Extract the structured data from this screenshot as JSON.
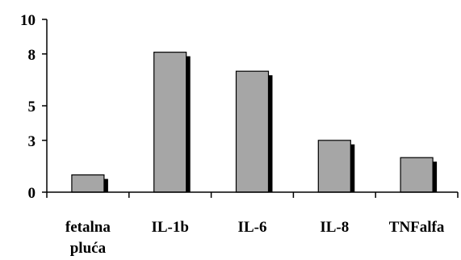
{
  "chart_data": {
    "type": "bar",
    "categories": [
      "fetalna pluća",
      "IL-1b",
      "IL-6",
      "IL-8",
      "TNFalfa"
    ],
    "category_lines": [
      [
        "fetalna",
        "pluća"
      ],
      [
        "IL-1b"
      ],
      [
        "IL-6"
      ],
      [
        "IL-8"
      ],
      [
        "TNFalfa"
      ]
    ],
    "values": [
      1.0,
      8.1,
      7.0,
      3.0,
      2.0
    ],
    "yticks": [
      0,
      3,
      5,
      8,
      10
    ],
    "ylim": [
      0,
      10
    ],
    "title": "",
    "xlabel": "",
    "ylabel": "",
    "grid": false,
    "legend": "none",
    "colors": {
      "bar": "#a6a6a6",
      "shadow": "#000000",
      "axis": "#000000"
    }
  }
}
